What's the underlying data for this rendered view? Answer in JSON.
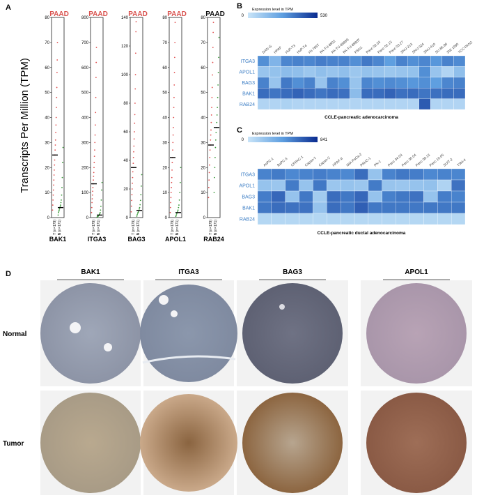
{
  "panel_a": {
    "letter": "A",
    "y_axis_label": "Transcripts Per Million (TPM)",
    "plots": [
      {
        "gene": "BAK1",
        "cancer": "PAAD",
        "cancer_color": "#d9534f",
        "tumor_label": "T (n=179)",
        "normal_label": "N (n=171)",
        "ylim": [
          0,
          80
        ],
        "yticks": [
          0,
          10,
          20,
          30,
          40,
          50,
          60,
          70,
          80
        ],
        "tumor_median": 25,
        "normal_median": 4,
        "tumor_points": [
          3,
          5,
          7,
          9,
          11,
          13,
          15,
          17,
          19,
          21,
          23,
          25,
          27,
          29,
          31,
          34,
          37,
          40,
          44,
          48,
          52,
          58,
          63,
          70
        ],
        "normal_points": [
          1,
          2,
          2.5,
          3,
          3.5,
          4,
          4.5,
          5,
          6,
          7,
          9,
          12,
          16,
          22,
          28
        ]
      },
      {
        "gene": "ITGA3",
        "cancer": "PAAD",
        "cancer_color": "#d9534f",
        "tumor_label": "T (n=179)",
        "normal_label": "N (n=171)",
        "ylim": [
          0,
          800
        ],
        "yticks": [
          0,
          100,
          200,
          300,
          400,
          500,
          600,
          700,
          800
        ],
        "tumor_median": 135,
        "normal_median": 10,
        "tumor_points": [
          20,
          40,
          60,
          75,
          90,
          105,
          120,
          135,
          150,
          165,
          180,
          200,
          220,
          245,
          270,
          300,
          330,
          370,
          420,
          480,
          560,
          620,
          680
        ],
        "normal_points": [
          2,
          4,
          5,
          6,
          8,
          10,
          12,
          15,
          20,
          30,
          45,
          70,
          110,
          140
        ]
      },
      {
        "gene": "BAG3",
        "cancer": "PAAD",
        "cancer_color": "#d9534f",
        "tumor_label": "T (n=179)",
        "normal_label": "N (n=171)",
        "ylim": [
          0,
          140
        ],
        "yticks": [
          0,
          20,
          40,
          60,
          80,
          100,
          120,
          140
        ],
        "tumor_median": 35,
        "normal_median": 5,
        "tumor_points": [
          4,
          8,
          12,
          16,
          20,
          24,
          28,
          32,
          35,
          38,
          42,
          46,
          50,
          55,
          60,
          66,
          72,
          80,
          90,
          100,
          115,
          130,
          137
        ],
        "normal_points": [
          1,
          2,
          3,
          3.5,
          4,
          5,
          6,
          7,
          9,
          12,
          16,
          22,
          30
        ]
      },
      {
        "gene": "APOL1",
        "cancer": "PAAD",
        "cancer_color": "#d9534f",
        "tumor_label": "T (n=179)",
        "normal_label": "N (n=171)",
        "ylim": [
          0,
          80
        ],
        "yticks": [
          0,
          10,
          20,
          30,
          40,
          50,
          60,
          70,
          80
        ],
        "tumor_median": 24,
        "normal_median": 2,
        "tumor_points": [
          2,
          4,
          6,
          8,
          10,
          12,
          14,
          16,
          19,
          22,
          24,
          27,
          30,
          33,
          36,
          40,
          44,
          48,
          53,
          58,
          64,
          70,
          78
        ],
        "normal_points": [
          0.5,
          1,
          1.5,
          2,
          2.5,
          3,
          4,
          5,
          7,
          10,
          14,
          20
        ]
      },
      {
        "gene": "RAB24",
        "cancer": "PAAD",
        "cancer_color": "#111111",
        "tumor_label": "T (n=179)",
        "normal_label": "N (n=171)",
        "ylim": [
          0,
          80
        ],
        "yticks": [
          0,
          10,
          20,
          30,
          40,
          50,
          60,
          70,
          80
        ],
        "tumor_median": 29,
        "normal_median": 36,
        "tumor_points": [
          8,
          12,
          15,
          18,
          21,
          24,
          27,
          29,
          31,
          33,
          35,
          38,
          41,
          44,
          48,
          52,
          57,
          62,
          68,
          74,
          78
        ],
        "normal_points": [
          10,
          16,
          20,
          24,
          28,
          31,
          34,
          36,
          38,
          41,
          44,
          48,
          53,
          58,
          64,
          72
        ]
      }
    ]
  },
  "panel_b": {
    "letter": "B",
    "colorbar_label": "Expression level in TPM",
    "colorbar_min": 0,
    "colorbar_max": 530,
    "colors": [
      "#c9e4f8",
      "#5d9ee0",
      "#0a2b8f"
    ],
    "columns": [
      "DAN-G",
      "HPAF",
      "HuP-T3",
      "HuP-T4",
      "Hs 766T",
      "PA-TU-8902",
      "PA-TU-8988S",
      "PA-TU-8988T",
      "PSN1",
      "Panc 02.03",
      "Panc 02.13",
      "Panc 03.27",
      "SNU-213",
      "SNU-324",
      "SNU-410",
      "SU.86.86",
      "SW 1990",
      "TCC-PAN2"
    ],
    "rows": [
      "ITGA3",
      "APOL1",
      "BAG3",
      "BAK1",
      "RAB24"
    ],
    "values": [
      [
        300,
        180,
        320,
        330,
        320,
        340,
        330,
        330,
        300,
        350,
        320,
        260,
        330,
        300,
        320,
        280,
        330,
        310
      ],
      [
        120,
        130,
        150,
        140,
        110,
        140,
        120,
        140,
        110,
        130,
        120,
        110,
        120,
        130,
        300,
        120,
        60,
        140
      ],
      [
        330,
        120,
        350,
        300,
        330,
        120,
        330,
        300,
        120,
        320,
        300,
        310,
        300,
        280,
        300,
        260,
        320,
        330
      ],
      [
        380,
        360,
        380,
        400,
        380,
        360,
        380,
        370,
        150,
        380,
        380,
        400,
        370,
        380,
        360,
        370,
        380,
        380
      ],
      [
        60,
        60,
        70,
        60,
        60,
        60,
        60,
        60,
        60,
        60,
        60,
        60,
        60,
        60,
        420,
        60,
        60,
        60
      ]
    ],
    "caption": "CCLE-pancreatic adenocarcinoma"
  },
  "panel_c": {
    "letter": "C",
    "colorbar_label": "Expression level in TPM",
    "colorbar_min": 0,
    "colorbar_max": 841,
    "colors": [
      "#c9e4f8",
      "#5d9ee0",
      "#0a2b8f"
    ],
    "columns": [
      "AsPC-1",
      "BxPC-3",
      "CFPAC-1",
      "Capan-1",
      "Capan-2",
      "HPAF-II",
      "MIA PaCa-2",
      "PANC-1",
      "PK-1",
      "Panc 04.03",
      "Panc 05.04",
      "Panc 08.13",
      "Panc 10.05",
      "SUIT-2",
      "T3M-4"
    ],
    "rows": [
      "ITGA3",
      "APOL1",
      "BAG3",
      "BAK1",
      "RAB24"
    ],
    "values": [
      [
        520,
        550,
        500,
        520,
        540,
        520,
        500,
        600,
        200,
        520,
        560,
        540,
        500,
        520,
        510
      ],
      [
        200,
        180,
        550,
        200,
        560,
        180,
        200,
        180,
        550,
        190,
        180,
        200,
        210,
        100,
        580
      ],
      [
        540,
        620,
        200,
        560,
        150,
        600,
        560,
        620,
        200,
        530,
        560,
        580,
        200,
        540,
        520
      ],
      [
        560,
        600,
        580,
        580,
        200,
        600,
        560,
        650,
        560,
        560,
        560,
        560,
        560,
        560,
        560
      ],
      [
        80,
        80,
        80,
        80,
        80,
        80,
        80,
        80,
        80,
        80,
        80,
        80,
        80,
        80,
        80
      ]
    ],
    "caption": "CCLE-pancreatic ductal adenocarcinoma"
  },
  "panel_d": {
    "letter": "D",
    "columns": [
      "BAK1",
      "ITGA3",
      "BAG3",
      "APOL1"
    ],
    "rows": [
      "Normal",
      "Tumor"
    ]
  }
}
